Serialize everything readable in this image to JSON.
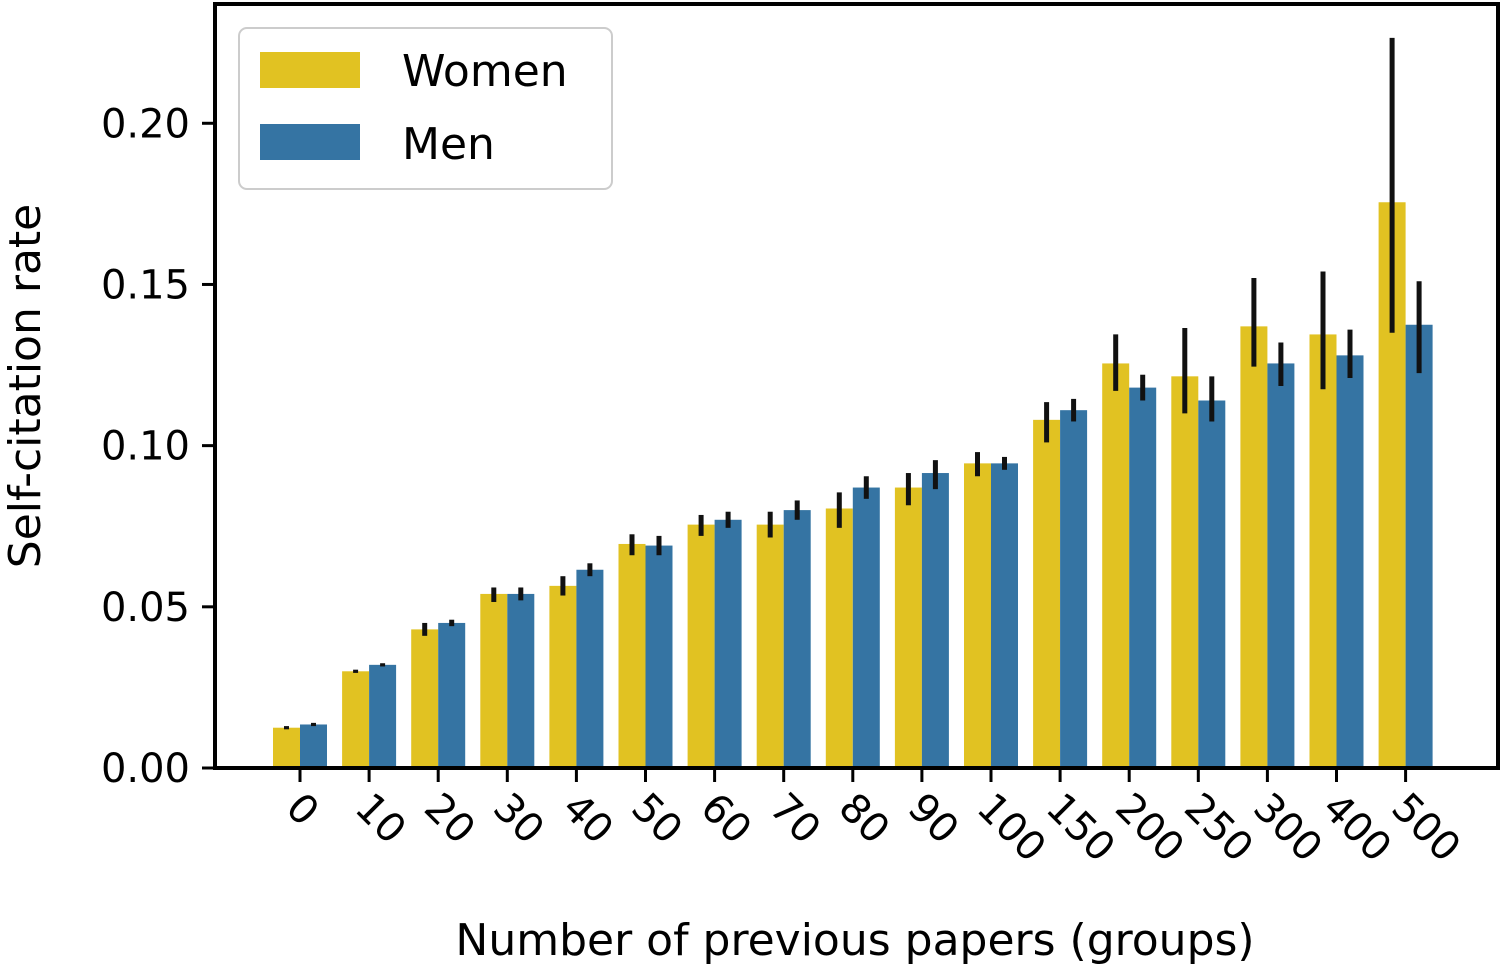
{
  "chart_data": {
    "type": "bar",
    "title": "",
    "xlabel": "Number of previous papers (groups)",
    "ylabel": "Self-citation rate",
    "ylim": [
      0,
      0.237
    ],
    "yticks": [
      "0.00",
      "0.05",
      "0.10",
      "0.15",
      "0.20"
    ],
    "grid": false,
    "legend_position": "top-left",
    "categories": [
      "0",
      "10",
      "20",
      "30",
      "40",
      "50",
      "60",
      "70",
      "80",
      "90",
      "100",
      "150",
      "200",
      "250",
      "300",
      "400",
      "500"
    ],
    "series": [
      {
        "name": "Women",
        "color": "#e1c222",
        "values": [
          0.0125,
          0.03,
          0.043,
          0.054,
          0.0565,
          0.0695,
          0.0755,
          0.0755,
          0.0805,
          0.087,
          0.0945,
          0.108,
          0.1255,
          0.1215,
          0.137,
          0.1345,
          0.1755
        ],
        "error_low": [
          0.012,
          0.0295,
          0.041,
          0.0515,
          0.0535,
          0.066,
          0.072,
          0.0715,
          0.0745,
          0.0815,
          0.0905,
          0.101,
          0.117,
          0.11,
          0.1245,
          0.1175,
          0.135
        ],
        "error_high": [
          0.013,
          0.0305,
          0.045,
          0.056,
          0.0595,
          0.0725,
          0.0785,
          0.0795,
          0.0855,
          0.0915,
          0.098,
          0.1135,
          0.1345,
          0.1365,
          0.152,
          0.154,
          0.2265
        ]
      },
      {
        "name": "Men",
        "color": "#3574a3",
        "values": [
          0.0135,
          0.032,
          0.045,
          0.054,
          0.0615,
          0.069,
          0.077,
          0.08,
          0.087,
          0.0915,
          0.0945,
          0.111,
          0.118,
          0.114,
          0.1255,
          0.128,
          0.1375
        ],
        "error_low": [
          0.013,
          0.0315,
          0.044,
          0.052,
          0.0595,
          0.066,
          0.0745,
          0.077,
          0.0835,
          0.0865,
          0.0925,
          0.1075,
          0.114,
          0.1075,
          0.1185,
          0.121,
          0.1225
        ],
        "error_high": [
          0.014,
          0.0325,
          0.046,
          0.056,
          0.0635,
          0.072,
          0.0795,
          0.083,
          0.0905,
          0.0955,
          0.0965,
          0.1145,
          0.122,
          0.1215,
          0.132,
          0.136,
          0.151
        ]
      }
    ]
  }
}
